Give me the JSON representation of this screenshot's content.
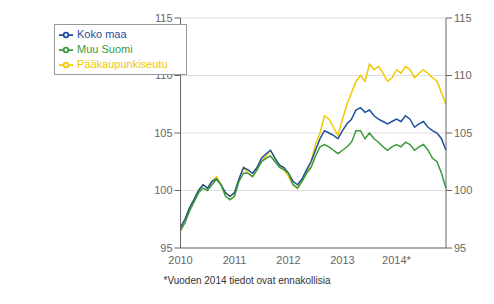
{
  "chart_data": {
    "type": "line",
    "categories": [
      "2010",
      null,
      null,
      null,
      null,
      null,
      null,
      null,
      null,
      null,
      null,
      null,
      "2011",
      null,
      null,
      null,
      null,
      null,
      null,
      null,
      null,
      null,
      null,
      null,
      "2012",
      null,
      null,
      null,
      null,
      null,
      null,
      null,
      null,
      null,
      null,
      null,
      "2013",
      null,
      null,
      null,
      null,
      null,
      null,
      null,
      null,
      null,
      null,
      null,
      "2014*",
      null,
      null,
      null,
      null,
      null,
      null,
      null,
      null,
      null,
      null,
      null
    ],
    "series": [
      {
        "name": "Pääkaupunkiseutu",
        "color": "#f0c800",
        "values": [
          96.8,
          97.5,
          98.5,
          99.2,
          100.0,
          100.5,
          100.2,
          100.8,
          101.2,
          100.5,
          99.8,
          99.5,
          99.8,
          101.0,
          102.0,
          101.5,
          101.2,
          101.8,
          102.5,
          103.0,
          103.5,
          102.8,
          102.2,
          101.8,
          101.2,
          100.5,
          100.2,
          100.8,
          101.5,
          102.5,
          104.0,
          105.0,
          106.5,
          106.2,
          105.5,
          104.8,
          106.2,
          107.5,
          108.5,
          109.5,
          110.0,
          109.5,
          111.0,
          110.5,
          110.8,
          110.2,
          109.5,
          109.8,
          110.5,
          110.2,
          110.8,
          110.5,
          109.8,
          110.2,
          110.5,
          110.2,
          109.8,
          109.5,
          108.5,
          107.5
        ]
      },
      {
        "name": "Koko maa",
        "color": "#1f4e9e",
        "values": [
          96.8,
          97.5,
          98.5,
          99.2,
          100.0,
          100.5,
          100.2,
          100.8,
          101.0,
          100.5,
          99.8,
          99.5,
          99.8,
          101.0,
          102.0,
          101.8,
          101.5,
          102.0,
          102.8,
          103.2,
          103.5,
          102.8,
          102.2,
          102.0,
          101.5,
          100.8,
          100.5,
          101.0,
          101.8,
          102.5,
          103.5,
          104.5,
          105.2,
          105.0,
          104.8,
          104.5,
          105.2,
          105.8,
          106.2,
          107.0,
          107.2,
          106.8,
          107.0,
          106.5,
          106.2,
          106.0,
          105.8,
          106.0,
          106.2,
          106.0,
          106.5,
          106.2,
          105.5,
          105.8,
          106.0,
          105.5,
          105.2,
          105.0,
          104.5,
          103.5
        ]
      },
      {
        "name": "Muu Suomi",
        "color": "#3a9a3a",
        "values": [
          96.5,
          97.2,
          98.2,
          99.0,
          99.8,
          100.2,
          100.0,
          100.5,
          101.0,
          100.5,
          99.5,
          99.2,
          99.5,
          100.8,
          101.5,
          101.5,
          101.2,
          101.8,
          102.5,
          102.8,
          103.0,
          102.5,
          102.0,
          101.8,
          101.5,
          100.5,
          100.2,
          100.8,
          101.5,
          102.0,
          103.0,
          103.8,
          104.0,
          103.8,
          103.5,
          103.2,
          103.5,
          103.8,
          104.2,
          105.2,
          105.2,
          104.5,
          105.0,
          104.5,
          104.2,
          103.8,
          103.5,
          103.8,
          104.0,
          103.8,
          104.2,
          104.0,
          103.5,
          103.8,
          104.0,
          103.5,
          102.8,
          102.5,
          101.5,
          100.2
        ]
      }
    ],
    "ylim": [
      95,
      115
    ],
    "yticks": [
      95,
      100,
      105,
      110,
      115
    ],
    "y2lim": [
      95,
      115
    ],
    "y2ticks": [
      95,
      100,
      105,
      110,
      115
    ],
    "grid": true,
    "legend": "upper left",
    "annotations": [
      "*Vuoden 2014 tiedot ovat ennakollisia"
    ]
  }
}
